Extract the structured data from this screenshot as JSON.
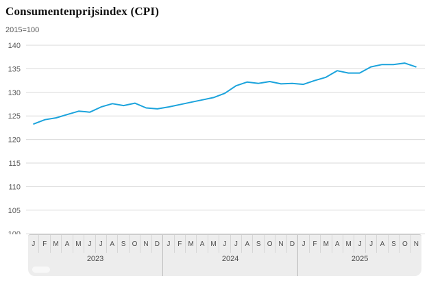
{
  "header": {
    "title": "Consumentenprijsindex (CPI)",
    "subtitle": "2015=100"
  },
  "colors": {
    "line": "#1ba3dc",
    "grid": "#d9d9d9",
    "axis_text": "#595959",
    "band_background": "#ededed",
    "band_text": "#4d4d4d"
  },
  "chart_data": {
    "type": "line",
    "title": "Consumentenprijsindex (CPI)",
    "subtitle": "2015=100",
    "ylabel": "",
    "xlabel": "",
    "ylim": [
      100,
      140
    ],
    "yticks": [
      100,
      105,
      110,
      115,
      120,
      125,
      130,
      135,
      140
    ],
    "grid": true,
    "legend_position": "none",
    "line_color": "#1ba3dc",
    "years": [
      {
        "year": "2023",
        "months": [
          "J",
          "F",
          "M",
          "A",
          "M",
          "J",
          "J",
          "A",
          "S",
          "O",
          "N",
          "D"
        ],
        "values": [
          123.3,
          124.2,
          124.6,
          125.3,
          126.0,
          125.8,
          126.9,
          127.6,
          127.2,
          127.7,
          126.7,
          126.5
        ]
      },
      {
        "year": "2024",
        "months": [
          "J",
          "F",
          "M",
          "A",
          "M",
          "J",
          "J",
          "A",
          "S",
          "O",
          "N",
          "D"
        ],
        "values": [
          126.9,
          127.4,
          127.9,
          128.4,
          128.9,
          129.8,
          131.4,
          132.2,
          131.9,
          132.3,
          131.8,
          131.9
        ]
      },
      {
        "year": "2025",
        "months": [
          "J",
          "F",
          "M",
          "A",
          "M",
          "J",
          "J",
          "A",
          "S",
          "O",
          "N"
        ],
        "values": [
          131.7,
          132.5,
          133.2,
          134.6,
          134.1,
          134.1,
          135.4,
          135.9,
          135.9,
          136.2,
          135.4
        ]
      }
    ]
  }
}
